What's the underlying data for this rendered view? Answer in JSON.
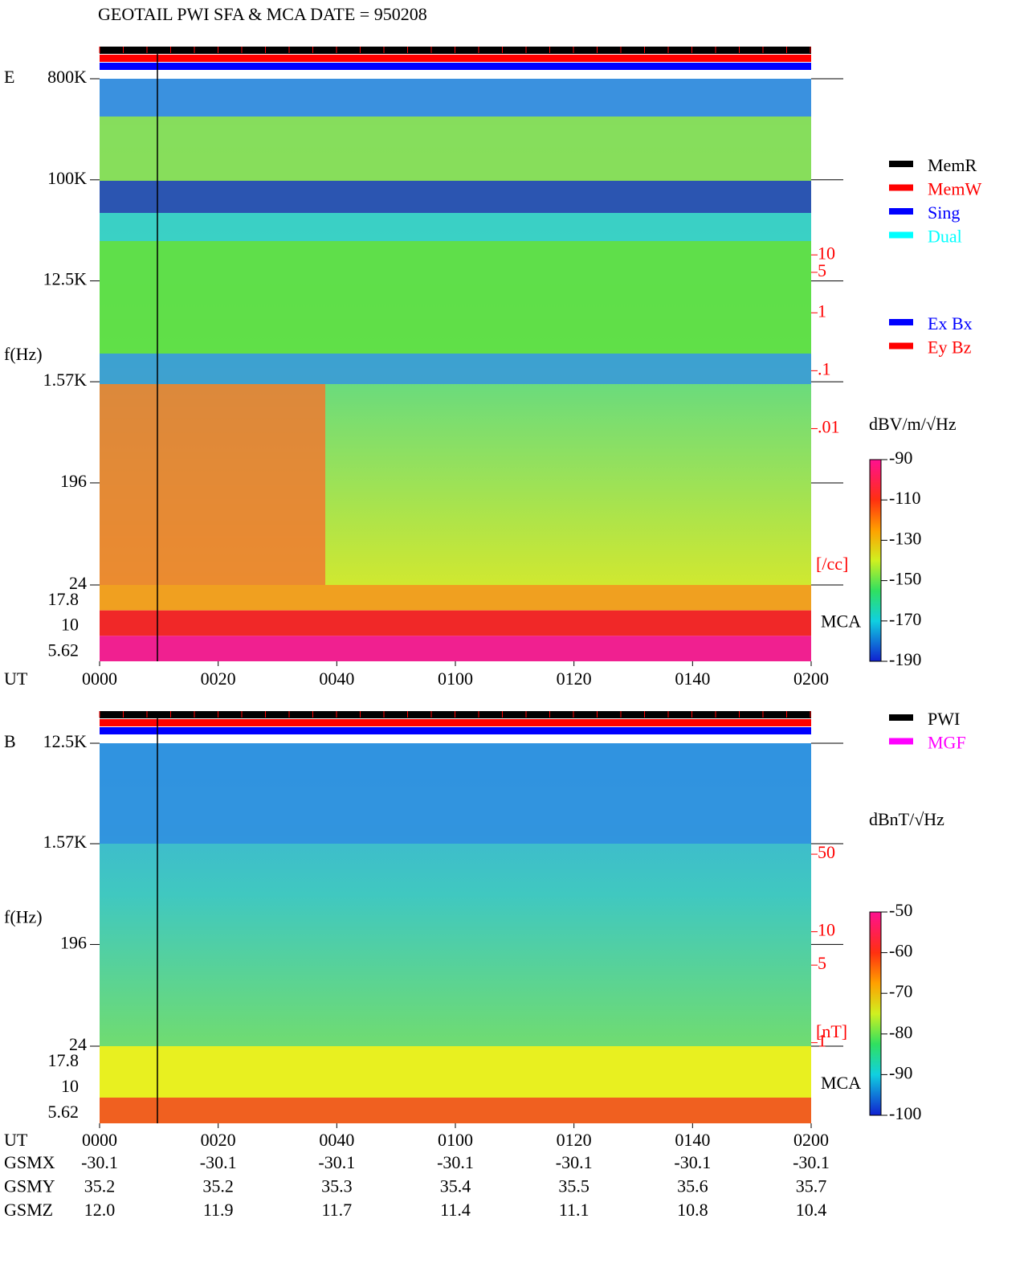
{
  "title": "GEOTAIL  PWI SFA & MCA   DATE = 950208",
  "panels": [
    {
      "label": "E",
      "y_label": "f(Hz)",
      "log": true,
      "ylim": [
        24,
        800000
      ],
      "freq_ticks": [
        {
          "value": 800000,
          "label": "800K"
        },
        {
          "value": 100000,
          "label": "100K"
        },
        {
          "value": 12500,
          "label": "12.5K"
        },
        {
          "value": 1570,
          "label": "1.57K"
        },
        196,
        24
      ],
      "mca_label": "MCA",
      "mca_channels": [
        17.8,
        10,
        5.62
      ],
      "density_unit": "[/cc]",
      "density_ylim": [
        2e-05,
        11000
      ],
      "density_ticks": [
        10,
        5,
        1,
        {
          "value": 0.1,
          "label": ".1"
        },
        {
          "value": 0.01,
          "label": ".01"
        }
      ],
      "colorbar_title": "dBV/m/√Hz",
      "colorbar_ticks": [
        -90,
        -110,
        -130,
        -150,
        -170,
        -190
      ],
      "legend": [
        {
          "name": "MemR",
          "color": "#000000"
        },
        {
          "name": "MemW",
          "color": "#ff0000"
        },
        {
          "name": "Sing",
          "color": "#0000ff"
        },
        {
          "name": "Dual",
          "color": "#00ffff"
        }
      ],
      "legend2": [
        {
          "name": "Ex Bx",
          "color": "#0000ff"
        },
        {
          "name": "Ey Bz",
          "color": "#ff0000"
        }
      ]
    },
    {
      "label": "B",
      "y_label": "f(Hz)",
      "log": true,
      "ylim": [
        24,
        12500
      ],
      "freq_ticks": [
        {
          "value": 12500,
          "label": "12.5K"
        },
        {
          "value": 1570,
          "label": "1.57K"
        },
        196,
        24
      ],
      "mca_label": "MCA",
      "mca_channels": [
        17.8,
        10,
        5.62
      ],
      "density_unit": "[nT]",
      "density_ylim": [
        0.93,
        500
      ],
      "density_ticks": [
        50,
        10,
        5,
        1
      ],
      "colorbar_title": "dBnT/√Hz",
      "colorbar_ticks": [
        -50,
        -60,
        -70,
        -80,
        -90,
        -100
      ],
      "legend": [
        {
          "name": "PWI",
          "color": "#000000"
        },
        {
          "name": "MGF",
          "color": "#ff00ff"
        }
      ]
    }
  ],
  "time_axis": {
    "label": "UT",
    "ticks": [
      "0000",
      "0020",
      "0040",
      "0100",
      "0120",
      "0140",
      "0200"
    ]
  },
  "orbit": [
    {
      "name": "GSMX",
      "values": [
        "-30.1",
        "-30.1",
        "-30.1",
        "-30.1",
        "-30.1",
        "-30.1",
        "-30.1"
      ]
    },
    {
      "name": "GSMY",
      "values": [
        "35.2",
        "35.2",
        "35.3",
        "35.4",
        "35.5",
        "35.6",
        "35.7"
      ]
    },
    {
      "name": "GSMZ",
      "values": [
        "12.0",
        "11.9",
        "11.7",
        "11.4",
        "11.1",
        "10.8",
        "10.4"
      ]
    }
  ]
}
